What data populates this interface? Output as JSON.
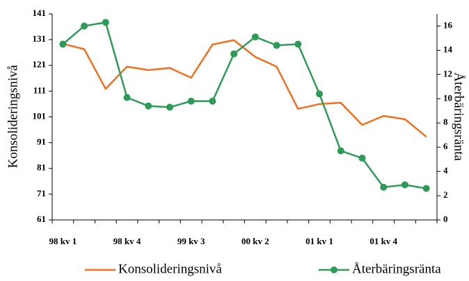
{
  "chart_data": {
    "type": "line",
    "categories": [
      "98 kv 1",
      null,
      null,
      "98 kv 4",
      null,
      null,
      "99 kv 3",
      null,
      null,
      "00 kv 2",
      null,
      null,
      "01 kv 1",
      null,
      null,
      "01 kv 4",
      null,
      null
    ],
    "y_label": "Konsolideringsnivå",
    "y2_label": "Återbäringsränta",
    "ylim": [
      61,
      141
    ],
    "yticks": [
      61,
      71,
      81,
      91,
      101,
      111,
      121,
      131,
      141
    ],
    "y2lim": [
      0,
      17
    ],
    "y2ticks": [
      0,
      2,
      4,
      6,
      8,
      10,
      12,
      14,
      16
    ],
    "series": [
      {
        "name": "Konsolideringsnivå",
        "color": "#f07020",
        "marker": false,
        "values": [
          129.4,
          127.3,
          111.9,
          120.5,
          119.2,
          120.0,
          116.2,
          129.1,
          130.8,
          124.3,
          120.5,
          104.1,
          106.0,
          106.5,
          97.9,
          101.4,
          100.1,
          93.3
        ]
      },
      {
        "name": "Återbäringsränta",
        "color": "#2e9a58",
        "marker": true,
        "axis": "y2",
        "values": [
          14.5,
          16.0,
          16.3,
          10.1,
          9.4,
          9.3,
          9.8,
          9.8,
          13.7,
          15.1,
          14.4,
          14.5,
          10.4,
          5.7,
          5.1,
          2.7,
          2.9,
          2.6
        ]
      }
    ],
    "legend": "bottom",
    "grid": false
  }
}
